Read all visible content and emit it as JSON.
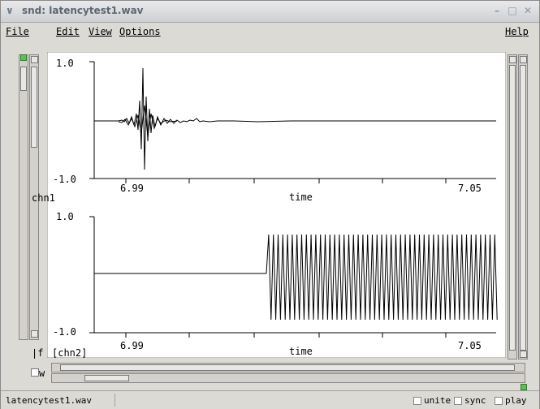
{
  "window": {
    "title": "snd: latencytest1.wav"
  },
  "menu": {
    "file": "File",
    "edit": "Edit",
    "view": "View",
    "options": "Options",
    "help": "Help"
  },
  "channels": [
    {
      "name": "chn1",
      "ymax": "1.0",
      "ymin": "-1.0",
      "xlabel": "time",
      "x_left": "6.99",
      "x_right": "7.05"
    },
    {
      "name": "[chn2]",
      "ymax": "1.0",
      "ymin": "-1.0",
      "xlabel": "time",
      "x_left": "6.99",
      "x_right": "7.05"
    }
  ],
  "controls": {
    "f_label": "f",
    "w_label": "w"
  },
  "status": {
    "filename": "latencytest1.wav",
    "unite": "unite",
    "sync": "sync",
    "play": "play"
  },
  "colors": {
    "wave": "#000000",
    "background": "#ffffff",
    "chrome": "#dcdad5"
  }
}
